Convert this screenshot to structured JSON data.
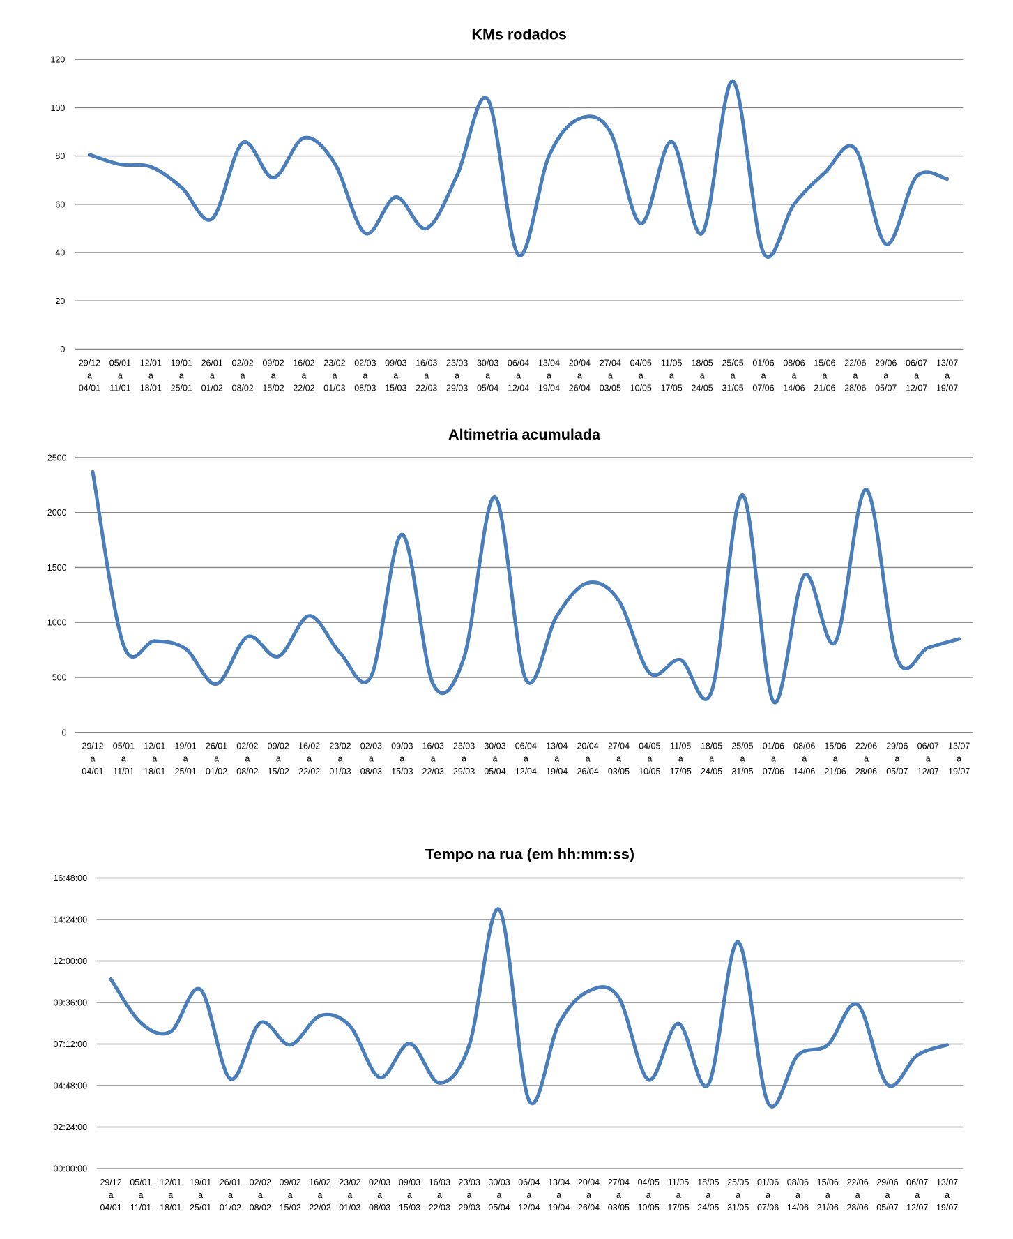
{
  "chart_data": [
    {
      "type": "line",
      "title": "KMs rodados",
      "xlabel": "",
      "ylabel": "",
      "ylim": [
        0,
        120
      ],
      "yticks": [
        "0",
        "20",
        "40",
        "60",
        "80",
        "100",
        "120"
      ],
      "grid": true,
      "smooth": true,
      "categories_start": [
        "29/12",
        "05/01",
        "12/01",
        "19/01",
        "26/01",
        "02/02",
        "09/02",
        "16/02",
        "23/02",
        "02/03",
        "09/03",
        "16/03",
        "23/03",
        "30/03",
        "06/04",
        "13/04",
        "20/04",
        "27/04",
        "04/05",
        "11/05",
        "18/05",
        "25/05",
        "01/06",
        "08/06",
        "15/06",
        "22/06",
        "29/06",
        "06/07",
        "13/07"
      ],
      "categories_end": [
        "04/01",
        "11/01",
        "18/01",
        "25/01",
        "01/02",
        "08/02",
        "15/02",
        "22/02",
        "01/03",
        "08/03",
        "15/03",
        "22/03",
        "29/03",
        "05/04",
        "12/04",
        "19/04",
        "26/04",
        "03/05",
        "10/05",
        "17/05",
        "24/05",
        "31/05",
        "07/06",
        "14/06",
        "21/06",
        "28/06",
        "05/07",
        "12/07",
        "19/07"
      ],
      "separator": "a",
      "values": [
        80.5,
        76.5,
        75.5,
        67,
        54,
        85.5,
        71,
        87.5,
        77,
        48,
        63,
        50,
        72,
        103.5,
        39,
        80,
        95.5,
        90,
        52,
        86,
        48,
        111,
        40,
        60,
        73,
        83,
        43.5,
        71.5,
        70.5
      ],
      "color": "#4a7ebb"
    },
    {
      "type": "line",
      "title": "Altimetria acumulada",
      "xlabel": "",
      "ylabel": "",
      "ylim": [
        0,
        2500
      ],
      "yticks": [
        "0",
        "500",
        "1000",
        "1500",
        "2000",
        "2500"
      ],
      "grid": true,
      "smooth": true,
      "categories_start": [
        "29/12",
        "05/01",
        "12/01",
        "19/01",
        "26/01",
        "02/02",
        "09/02",
        "16/02",
        "23/02",
        "02/03",
        "09/03",
        "16/03",
        "23/03",
        "30/03",
        "06/04",
        "13/04",
        "20/04",
        "27/04",
        "04/05",
        "11/05",
        "18/05",
        "25/05",
        "01/06",
        "08/06",
        "15/06",
        "22/06",
        "29/06",
        "06/07",
        "13/07"
      ],
      "categories_end": [
        "04/01",
        "11/01",
        "18/01",
        "25/01",
        "01/02",
        "08/02",
        "15/02",
        "22/02",
        "01/03",
        "08/03",
        "15/03",
        "22/03",
        "29/03",
        "05/04",
        "12/04",
        "19/04",
        "26/04",
        "03/05",
        "10/05",
        "17/05",
        "24/05",
        "31/05",
        "07/06",
        "14/06",
        "21/06",
        "28/06",
        "05/07",
        "12/07",
        "19/07"
      ],
      "separator": "a",
      "values": [
        2370,
        790,
        830,
        760,
        440,
        870,
        690,
        1060,
        720,
        510,
        1800,
        440,
        680,
        2140,
        480,
        1060,
        1360,
        1200,
        540,
        660,
        370,
        2160,
        280,
        1430,
        820,
        2210,
        670,
        770,
        850
      ],
      "color": "#4a7ebb"
    },
    {
      "type": "line",
      "title": "Tempo na rua (em hh:mm:ss)",
      "xlabel": "",
      "ylabel": "",
      "ylim": [
        "00:00:00",
        "16:48:00"
      ],
      "yticks": [
        "00:00:00",
        "02:24:00",
        "04:48:00",
        "07:12:00",
        "09:36:00",
        "12:00:00",
        "14:24:00",
        "16:48:00"
      ],
      "grid": true,
      "smooth": true,
      "categories_start": [
        "29/12",
        "05/01",
        "12/01",
        "19/01",
        "26/01",
        "02/02",
        "09/02",
        "16/02",
        "23/02",
        "02/03",
        "09/03",
        "16/03",
        "23/03",
        "30/03",
        "06/04",
        "13/04",
        "20/04",
        "27/04",
        "04/05",
        "11/05",
        "18/05",
        "25/05",
        "01/06",
        "08/06",
        "15/06",
        "22/06",
        "29/06",
        "06/07",
        "13/07"
      ],
      "categories_end": [
        "04/01",
        "11/01",
        "18/01",
        "25/01",
        "01/02",
        "08/02",
        "15/02",
        "22/02",
        "01/03",
        "08/03",
        "15/03",
        "22/03",
        "29/03",
        "05/04",
        "12/04",
        "19/04",
        "26/04",
        "03/05",
        "10/05",
        "17/05",
        "24/05",
        "31/05",
        "07/06",
        "14/06",
        "21/06",
        "28/06",
        "05/07",
        "12/07",
        "19/07"
      ],
      "separator": "a",
      "values": [
        "10:57:00",
        "08:26:00",
        "07:55:00",
        "10:21:00",
        "05:11:00",
        "08:26:00",
        "07:09:00",
        "08:50:00",
        "08:15:00",
        "05:16:00",
        "07:14:00",
        "04:57:00",
        "07:09:00",
        "14:59:00",
        "03:56:00",
        "08:23:00",
        "10:16:00",
        "09:54:00",
        "05:08:00",
        "08:23:00",
        "04:51:00",
        "13:06:00",
        "03:48:00",
        "06:33:00",
        "07:09:00",
        "09:29:00",
        "04:51:00",
        "06:33:00",
        "07:09:00"
      ],
      "color": "#4a7ebb"
    }
  ]
}
